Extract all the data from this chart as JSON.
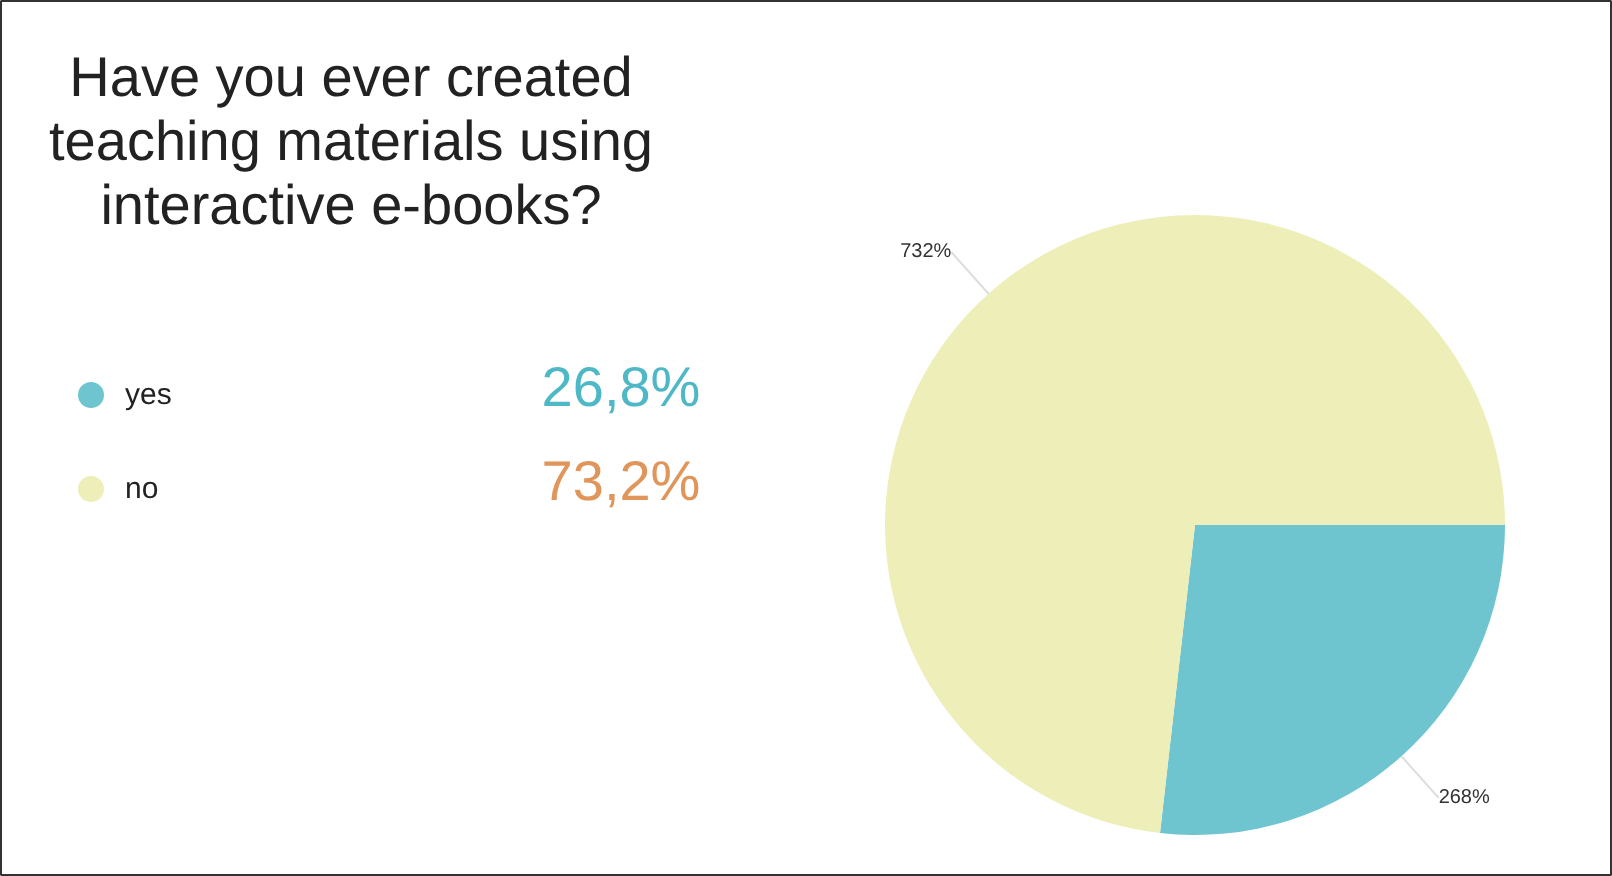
{
  "chart_data": {
    "type": "pie",
    "title": "Have you ever created teaching materials using interactive e-books?",
    "categories": [
      "yes",
      "no"
    ],
    "values": [
      26.8,
      73.2
    ],
    "colors": [
      "#6ec5d0",
      "#eeeeb8"
    ],
    "annotations": [
      "26,8%",
      "73,2%",
      "268%",
      "732%"
    ],
    "legend": "left"
  }
}
